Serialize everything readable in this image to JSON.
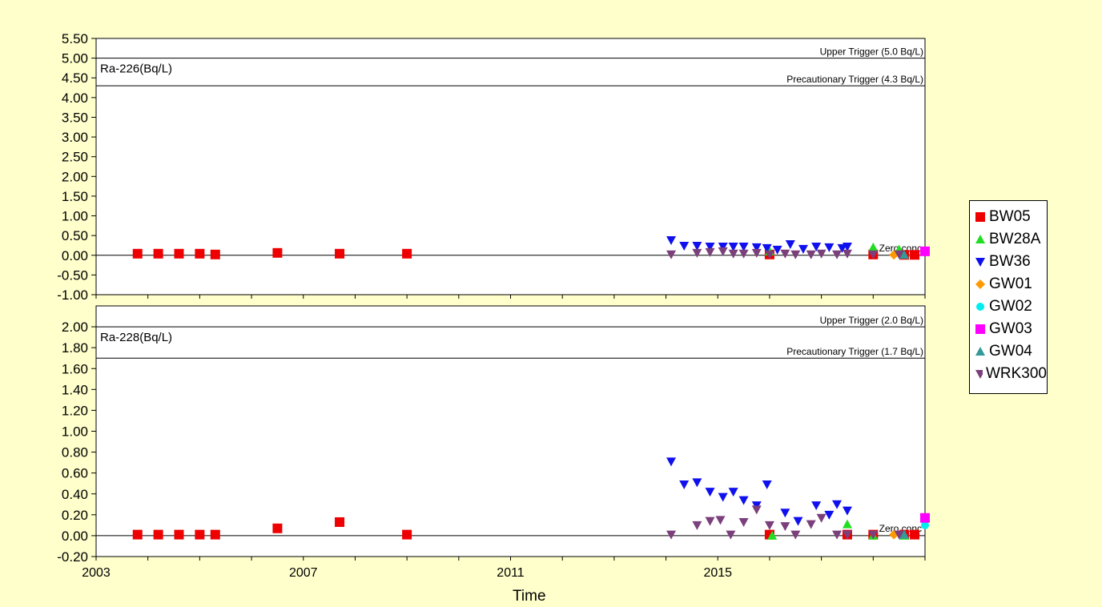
{
  "chart_data": [
    {
      "type": "scatter",
      "panel_label": "Ra-226(Bq/L)",
      "ylim": [
        -1.0,
        5.5
      ],
      "yticks": [
        "5.50",
        "5.00",
        "4.50",
        "4.00",
        "3.50",
        "3.00",
        "2.50",
        "2.00",
        "1.50",
        "1.00",
        "0.50",
        "0.00",
        "-0.50",
        "-1.00"
      ],
      "reference_lines": [
        {
          "label": "Upper Trigger (5.0 Bq/L)",
          "y": 5.0
        },
        {
          "label": "Precautionary Trigger (4.3 Bq/L)",
          "y": 4.3
        }
      ],
      "zero_label": "Zero conc",
      "series": [
        {
          "name": "BW05",
          "x": [
            2003.8,
            2004.2,
            2004.6,
            2005.0,
            2005.3,
            2006.5,
            2007.7,
            2009.0,
            2016.0,
            2018.0,
            2018.6,
            2018.8
          ],
          "y": [
            0.04,
            0.04,
            0.04,
            0.04,
            0.02,
            0.06,
            0.04,
            0.04,
            0.02,
            0.02,
            0.01,
            0.01
          ]
        },
        {
          "name": "BW28A",
          "x": [
            2016.0,
            2018.0,
            2018.5
          ],
          "y": [
            0.1,
            0.2,
            0.15
          ]
        },
        {
          "name": "BW36",
          "x": [
            2014.1,
            2014.35,
            2014.6,
            2014.85,
            2015.1,
            2015.3,
            2015.5,
            2015.75,
            2015.95,
            2016.15,
            2016.4,
            2016.65,
            2016.9,
            2017.15,
            2017.4,
            2017.5
          ],
          "y": [
            0.38,
            0.24,
            0.24,
            0.22,
            0.22,
            0.22,
            0.22,
            0.2,
            0.18,
            0.14,
            0.28,
            0.16,
            0.22,
            0.2,
            0.18,
            0.22
          ]
        },
        {
          "name": "GW01",
          "x": [
            2018.4
          ],
          "y": [
            0.01
          ]
        },
        {
          "name": "GW02",
          "x": [
            2019.0
          ],
          "y": [
            0.1
          ]
        },
        {
          "name": "GW03",
          "x": [
            2019.0
          ],
          "y": [
            0.1
          ]
        },
        {
          "name": "GW04",
          "x": [
            2018.6
          ],
          "y": [
            0.01
          ]
        },
        {
          "name": "WRK300",
          "x": [
            2014.1,
            2014.6,
            2014.85,
            2015.1,
            2015.3,
            2015.5,
            2015.75,
            2016.0,
            2016.3,
            2016.5,
            2016.8,
            2017.0,
            2017.3,
            2017.5,
            2018.0,
            2018.5
          ],
          "y": [
            0.02,
            0.06,
            0.08,
            0.1,
            0.04,
            0.04,
            0.06,
            0.02,
            0.04,
            0.02,
            0.02,
            0.04,
            0.02,
            0.04,
            0.02,
            0.02
          ]
        }
      ]
    },
    {
      "type": "scatter",
      "panel_label": "Ra-228(Bq/L)",
      "ylim": [
        -0.2,
        2.2
      ],
      "yticks": [
        "2.00",
        "1.80",
        "1.60",
        "1.40",
        "1.20",
        "1.00",
        "0.80",
        "0.60",
        "0.40",
        "0.20",
        "0.00",
        "-0.20"
      ],
      "reference_lines": [
        {
          "label": "Upper Trigger (2.0 Bq/L)",
          "y": 2.0
        },
        {
          "label": "Precautionary Trigger (1.7 Bq/L)",
          "y": 1.7
        }
      ],
      "zero_label": "Zero conc",
      "series": [
        {
          "name": "BW05",
          "x": [
            2003.8,
            2004.2,
            2004.6,
            2005.0,
            2005.3,
            2006.5,
            2007.7,
            2009.0,
            2016.0,
            2017.5,
            2018.0,
            2018.6,
            2018.8
          ],
          "y": [
            0.01,
            0.01,
            0.01,
            0.01,
            0.01,
            0.07,
            0.13,
            0.01,
            0.01,
            0.01,
            0.01,
            0.01,
            0.01
          ]
        },
        {
          "name": "BW28A",
          "x": [
            2016.05,
            2017.5,
            2018.0,
            2018.6
          ],
          "y": [
            0.0,
            0.11,
            0.0,
            0.0
          ]
        },
        {
          "name": "BW36",
          "x": [
            2014.1,
            2014.35,
            2014.6,
            2014.85,
            2015.1,
            2015.3,
            2015.5,
            2015.75,
            2015.95,
            2016.3,
            2016.55,
            2016.9,
            2017.15,
            2017.3,
            2017.5
          ],
          "y": [
            0.71,
            0.49,
            0.51,
            0.42,
            0.37,
            0.42,
            0.34,
            0.29,
            0.49,
            0.22,
            0.14,
            0.29,
            0.2,
            0.3,
            0.24
          ]
        },
        {
          "name": "GW01",
          "x": [
            2018.4
          ],
          "y": [
            0.01
          ]
        },
        {
          "name": "GW02",
          "x": [
            2019.0
          ],
          "y": [
            0.1
          ]
        },
        {
          "name": "GW03",
          "x": [
            2019.0
          ],
          "y": [
            0.17
          ]
        },
        {
          "name": "GW04",
          "x": [
            2018.6
          ],
          "y": [
            0.01
          ]
        },
        {
          "name": "WRK300",
          "x": [
            2014.1,
            2014.6,
            2014.85,
            2015.05,
            2015.25,
            2015.5,
            2015.75,
            2016.0,
            2016.3,
            2016.5,
            2016.8,
            2017.0,
            2017.3,
            2017.5,
            2018.0,
            2018.5
          ],
          "y": [
            0.01,
            0.1,
            0.14,
            0.15,
            0.01,
            0.13,
            0.25,
            0.1,
            0.09,
            0.01,
            0.11,
            0.17,
            0.01,
            0.01,
            0.01,
            0.01
          ]
        }
      ]
    }
  ],
  "x_axis": {
    "title": "Time",
    "xlim": [
      2003,
      2019.0
    ],
    "tick_labels": [
      "2003",
      "2007",
      "2011",
      "2015"
    ],
    "tick_values": [
      2003,
      2007,
      2011,
      2015
    ]
  },
  "legend": {
    "placement": "right",
    "items": [
      {
        "name": "BW05",
        "color": "#ee0000",
        "marker": "square"
      },
      {
        "name": "BW28A",
        "color": "#22dd22",
        "marker": "triangle-up"
      },
      {
        "name": "BW36",
        "color": "#1010ee",
        "marker": "triangle-down"
      },
      {
        "name": "GW01",
        "color": "#ff9900",
        "marker": "diamond"
      },
      {
        "name": "GW02",
        "color": "#00eeee",
        "marker": "circle"
      },
      {
        "name": "GW03",
        "color": "#ff00ff",
        "marker": "square"
      },
      {
        "name": "GW04",
        "color": "#339999",
        "marker": "triangle-up"
      },
      {
        "name": "WRK300",
        "color": "#7b3f7b",
        "marker": "triangle-down"
      }
    ]
  }
}
